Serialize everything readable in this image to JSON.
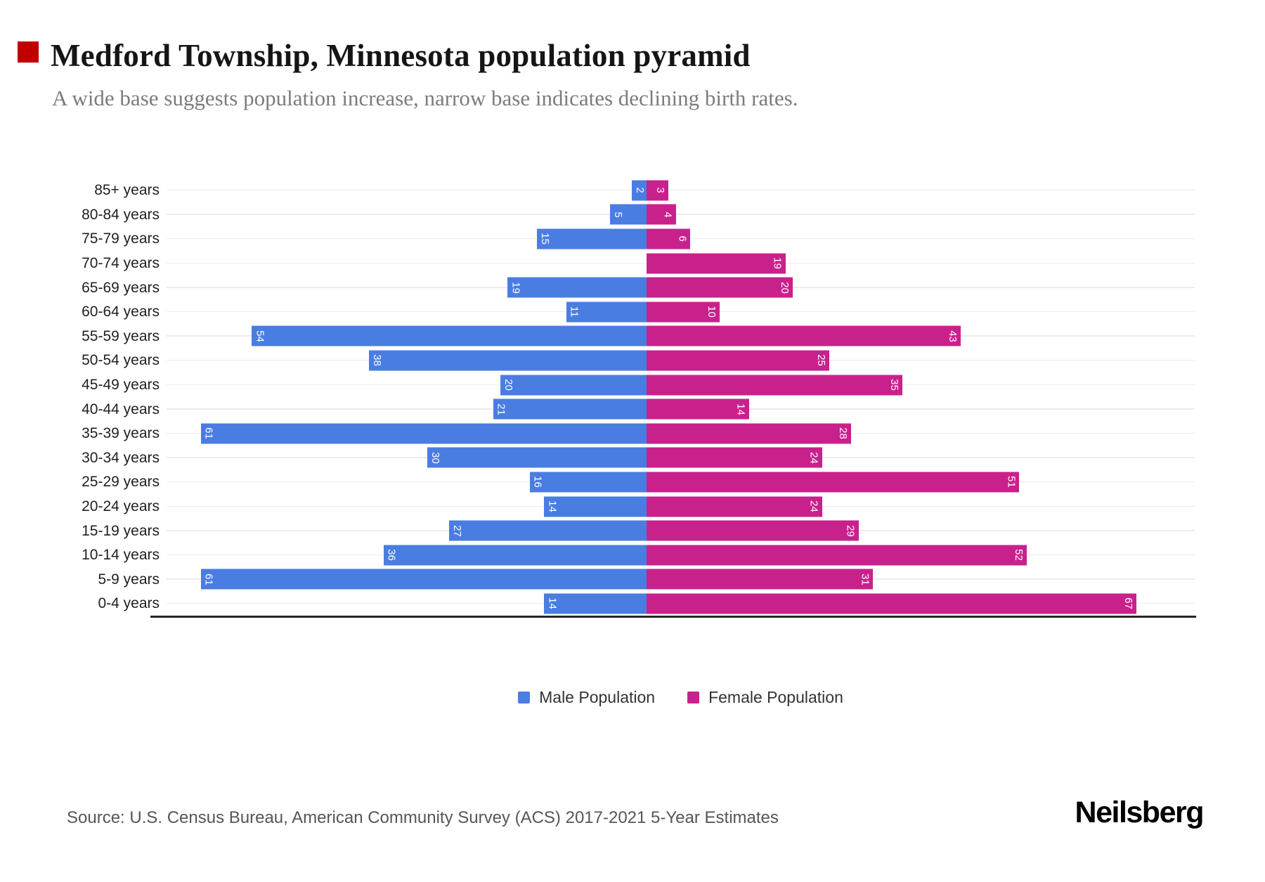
{
  "header": {
    "title": "Medford Township, Minnesota population pyramid",
    "subtitle": "A wide base suggests population increase, narrow base indicates declining birth rates."
  },
  "chart_data": {
    "type": "bar",
    "subtype": "population-pyramid",
    "orientation": "horizontal",
    "grid": true,
    "legend_position": "bottom",
    "categories": [
      "85+ years",
      "80-84 years",
      "75-79 years",
      "70-74 years",
      "65-69 years",
      "60-64 years",
      "55-59 years",
      "50-54 years",
      "45-49 years",
      "40-44 years",
      "35-39 years",
      "30-34 years",
      "25-29 years",
      "20-24 years",
      "15-19 years",
      "10-14 years",
      "5-9 years",
      "0-4 years"
    ],
    "series": [
      {
        "name": "Male Population",
        "side": "left",
        "color": "#4a7de2",
        "values": [
          2,
          5,
          15,
          0,
          19,
          11,
          54,
          38,
          20,
          21,
          61,
          30,
          16,
          14,
          27,
          36,
          61,
          14
        ]
      },
      {
        "name": "Female Population",
        "side": "right",
        "color": "#c9218c",
        "values": [
          3,
          4,
          6,
          19,
          20,
          10,
          43,
          25,
          35,
          14,
          28,
          24,
          51,
          24,
          29,
          52,
          31,
          67
        ]
      }
    ]
  },
  "colors": {
    "male": "#4a7de2",
    "female": "#c9218c",
    "grid": "#ececec",
    "axis": "#262626",
    "corner_marker": "#c00000"
  },
  "footer": {
    "source": "Source: U.S. Census Bureau, American Community Survey (ACS) 2017-2021 5-Year Estimates",
    "brand": "Neilsberg"
  }
}
